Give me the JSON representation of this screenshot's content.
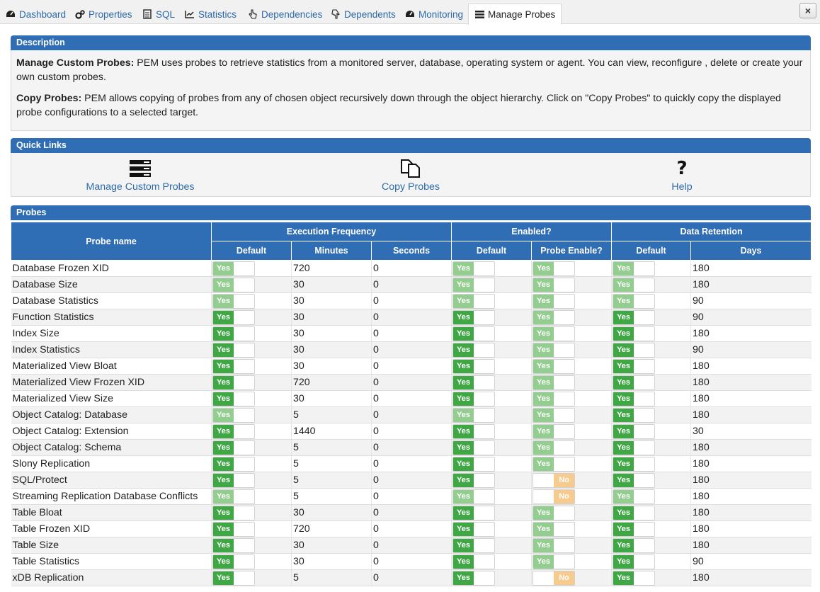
{
  "tabs": [
    {
      "label": "Dashboard",
      "icon": "dashboard-icon"
    },
    {
      "label": "Properties",
      "icon": "cogs-icon"
    },
    {
      "label": "SQL",
      "icon": "file-icon"
    },
    {
      "label": "Statistics",
      "icon": "line-chart-icon"
    },
    {
      "label": "Dependencies",
      "icon": "hand-pointer-icon"
    },
    {
      "label": "Dependents",
      "icon": "hand-up-icon"
    },
    {
      "label": "Monitoring",
      "icon": "dashboard-icon"
    },
    {
      "label": "Manage Probes",
      "icon": "list-icon"
    }
  ],
  "close_label": "×",
  "description": {
    "title": "Description",
    "p1_bold": "Manage Custom Probes:",
    "p1_text": " PEM uses probes to retrieve statistics from a monitored server, database, operating system or agent. You can view, reconfigure , delete or create your own custom probes.",
    "p2_bold": "Copy Probes:",
    "p2_text": " PEM allows copying of probes from any of chosen object recursively down through the object hierarchy. Click on \"Copy Probes\" to quickly copy the displayed probe configurations to a selected target."
  },
  "quick_links": {
    "title": "Quick Links",
    "manage": "Manage Custom Probes",
    "copy": "Copy Probes",
    "help": "Help"
  },
  "probes": {
    "title": "Probes",
    "headers": {
      "probe_name": "Probe name",
      "exec_freq": "Execution Frequency",
      "enabled": "Enabled?",
      "retention": "Data Retention",
      "default": "Default",
      "minutes": "Minutes",
      "seconds": "Seconds",
      "probe_enable": "Probe Enable?",
      "days": "Days"
    },
    "toggle_yes": "Yes",
    "toggle_no": "No",
    "rows": [
      {
        "name": "Database Frozen XID",
        "freq_default": "ondis",
        "minutes": "720",
        "seconds": "0",
        "en_default": "ondis",
        "probe_enable": "ondis",
        "ret_default": "ondis",
        "days": "180"
      },
      {
        "name": "Database Size",
        "freq_default": "ondis",
        "minutes": "30",
        "seconds": "0",
        "en_default": "ondis",
        "probe_enable": "ondis",
        "ret_default": "ondis",
        "days": "180"
      },
      {
        "name": "Database Statistics",
        "freq_default": "ondis",
        "minutes": "30",
        "seconds": "0",
        "en_default": "ondis",
        "probe_enable": "ondis",
        "ret_default": "ondis",
        "days": "90"
      },
      {
        "name": "Function Statistics",
        "freq_default": "on",
        "minutes": "30",
        "seconds": "0",
        "en_default": "on",
        "probe_enable": "ondis",
        "ret_default": "on",
        "days": "90"
      },
      {
        "name": "Index Size",
        "freq_default": "on",
        "minutes": "30",
        "seconds": "0",
        "en_default": "on",
        "probe_enable": "ondis",
        "ret_default": "on",
        "days": "180"
      },
      {
        "name": "Index Statistics",
        "freq_default": "on",
        "minutes": "30",
        "seconds": "0",
        "en_default": "on",
        "probe_enable": "ondis",
        "ret_default": "on",
        "days": "90"
      },
      {
        "name": "Materialized View Bloat",
        "freq_default": "on",
        "minutes": "30",
        "seconds": "0",
        "en_default": "on",
        "probe_enable": "ondis",
        "ret_default": "on",
        "days": "180"
      },
      {
        "name": "Materialized View Frozen XID",
        "freq_default": "on",
        "minutes": "720",
        "seconds": "0",
        "en_default": "on",
        "probe_enable": "ondis",
        "ret_default": "on",
        "days": "180"
      },
      {
        "name": "Materialized View Size",
        "freq_default": "on",
        "minutes": "30",
        "seconds": "0",
        "en_default": "on",
        "probe_enable": "ondis",
        "ret_default": "on",
        "days": "180"
      },
      {
        "name": "Object Catalog: Database",
        "freq_default": "ondis",
        "minutes": "5",
        "seconds": "0",
        "en_default": "ondis",
        "probe_enable": "ondis",
        "ret_default": "on",
        "days": "180"
      },
      {
        "name": "Object Catalog: Extension",
        "freq_default": "on",
        "minutes": "1440",
        "seconds": "0",
        "en_default": "on",
        "probe_enable": "ondis",
        "ret_default": "on",
        "days": "30"
      },
      {
        "name": "Object Catalog: Schema",
        "freq_default": "on",
        "minutes": "5",
        "seconds": "0",
        "en_default": "on",
        "probe_enable": "ondis",
        "ret_default": "on",
        "days": "180"
      },
      {
        "name": "Slony Replication",
        "freq_default": "on",
        "minutes": "5",
        "seconds": "0",
        "en_default": "on",
        "probe_enable": "ondis",
        "ret_default": "on",
        "days": "180"
      },
      {
        "name": "SQL/Protect",
        "freq_default": "on",
        "minutes": "5",
        "seconds": "0",
        "en_default": "on",
        "probe_enable": "off",
        "ret_default": "on",
        "days": "180"
      },
      {
        "name": "Streaming Replication Database Conflicts",
        "freq_default": "ondis",
        "minutes": "5",
        "seconds": "0",
        "en_default": "ondis",
        "probe_enable": "off",
        "ret_default": "ondis",
        "days": "180"
      },
      {
        "name": "Table Bloat",
        "freq_default": "on",
        "minutes": "30",
        "seconds": "0",
        "en_default": "on",
        "probe_enable": "ondis",
        "ret_default": "on",
        "days": "180"
      },
      {
        "name": "Table Frozen XID",
        "freq_default": "on",
        "minutes": "720",
        "seconds": "0",
        "en_default": "on",
        "probe_enable": "ondis",
        "ret_default": "on",
        "days": "180"
      },
      {
        "name": "Table Size",
        "freq_default": "on",
        "minutes": "30",
        "seconds": "0",
        "en_default": "on",
        "probe_enable": "ondis",
        "ret_default": "on",
        "days": "180"
      },
      {
        "name": "Table Statistics",
        "freq_default": "on",
        "minutes": "30",
        "seconds": "0",
        "en_default": "on",
        "probe_enable": "ondis",
        "ret_default": "on",
        "days": "90"
      },
      {
        "name": "xDB Replication",
        "freq_default": "on",
        "minutes": "5",
        "seconds": "0",
        "en_default": "on",
        "probe_enable": "off",
        "ret_default": "on",
        "days": "180"
      }
    ]
  }
}
